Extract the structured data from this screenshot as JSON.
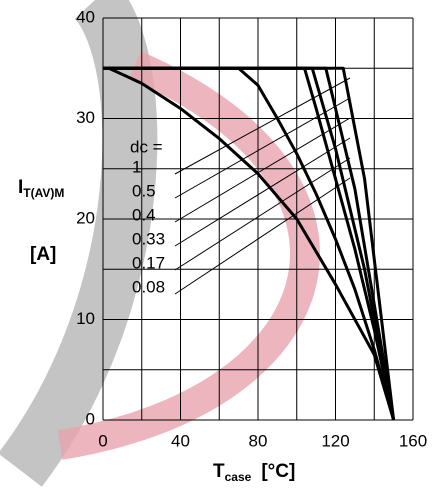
{
  "chart_data": {
    "type": "line",
    "x_label": {
      "main": "T",
      "sub": "case",
      "unit": "[°C]"
    },
    "y_label": {
      "main": "I",
      "sub": "T(AV)M",
      "unit": "[A]"
    },
    "legend_title": "dc =",
    "xlim": [
      0,
      160
    ],
    "ylim": [
      0,
      40
    ],
    "xticks": [
      0,
      40,
      80,
      120,
      160
    ],
    "yticks": [
      0,
      10,
      20,
      30,
      40
    ],
    "xgrid": [
      0,
      20,
      40,
      60,
      80,
      100,
      120,
      140,
      160
    ],
    "ygrid": [
      0,
      5,
      10,
      15,
      20,
      25,
      30,
      35,
      40
    ],
    "grid": true,
    "series": [
      {
        "name": "1",
        "color": "#000000",
        "x": [
          3,
          20,
          40,
          60,
          80,
          100,
          120,
          140,
          150
        ],
        "values": [
          35,
          33.5,
          31,
          28,
          24.5,
          20,
          13.5,
          6.5,
          0
        ]
      },
      {
        "name": "0.5",
        "color": "#000000",
        "x": [
          0,
          70,
          80,
          90,
          100,
          110,
          120,
          130,
          140,
          150
        ],
        "values": [
          35,
          35,
          33.3,
          30,
          26.5,
          22.5,
          18,
          13,
          7,
          0
        ]
      },
      {
        "name": "0.4",
        "color": "#000000",
        "x": [
          0,
          104,
          110,
          120,
          130,
          140,
          150
        ],
        "values": [
          35,
          35,
          31,
          24,
          17,
          9,
          0
        ]
      },
      {
        "name": "0.33",
        "color": "#000000",
        "x": [
          0,
          108,
          120,
          135,
          150
        ],
        "values": [
          35,
          35,
          27,
          15,
          0
        ]
      },
      {
        "name": "0.17",
        "color": "#000000",
        "x": [
          0,
          115,
          130,
          150
        ],
        "values": [
          35,
          35,
          23,
          0
        ]
      },
      {
        "name": "0.08",
        "color": "#000000",
        "x": [
          0,
          124,
          135,
          150
        ],
        "values": [
          35,
          35,
          24,
          0
        ]
      }
    ]
  }
}
